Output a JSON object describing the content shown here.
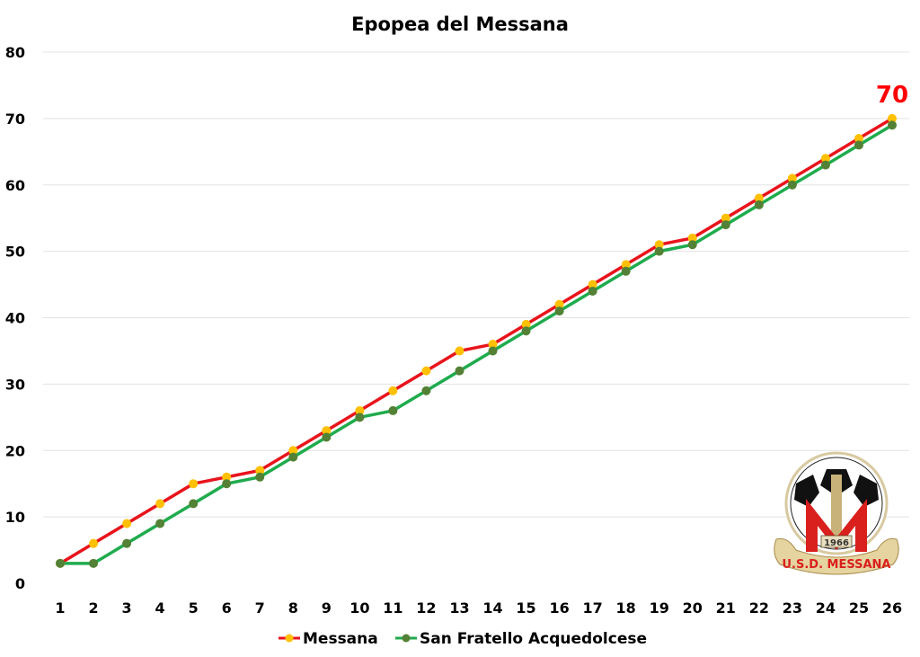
{
  "chart_data": {
    "type": "line",
    "title": "Epopea del Messana",
    "categories": [
      "1",
      "2",
      "3",
      "4",
      "5",
      "6",
      "7",
      "8",
      "9",
      "10",
      "11",
      "12",
      "13",
      "14",
      "15",
      "16",
      "17",
      "18",
      "19",
      "20",
      "21",
      "22",
      "23",
      "24",
      "25",
      "26"
    ],
    "ylim": [
      0,
      80
    ],
    "yticks": [
      "0",
      "10",
      "20",
      "30",
      "40",
      "50",
      "60",
      "70",
      "80"
    ],
    "grid": true,
    "legend_position": "bottom",
    "series": [
      {
        "name": "Messana",
        "line_color": "#e8141c",
        "marker_color": "#ffc000",
        "values": [
          3,
          6,
          9,
          12,
          15,
          16,
          17,
          20,
          23,
          26,
          29,
          32,
          35,
          36,
          39,
          42,
          45,
          48,
          51,
          52,
          55,
          58,
          61,
          64,
          67,
          70
        ]
      },
      {
        "name": "San Fratello Acquedolcese",
        "line_color": "#1fab4d",
        "marker_color": "#538135",
        "values": [
          3,
          3,
          6,
          9,
          12,
          15,
          16,
          19,
          22,
          25,
          26,
          29,
          32,
          35,
          38,
          41,
          44,
          47,
          50,
          51,
          54,
          57,
          60,
          63,
          66,
          69
        ]
      }
    ],
    "annotation": {
      "text": "70",
      "color": "#ff0000"
    }
  },
  "logo": {
    "name": "U.S.D. MESSANA",
    "year": "1966",
    "letter": "M"
  }
}
